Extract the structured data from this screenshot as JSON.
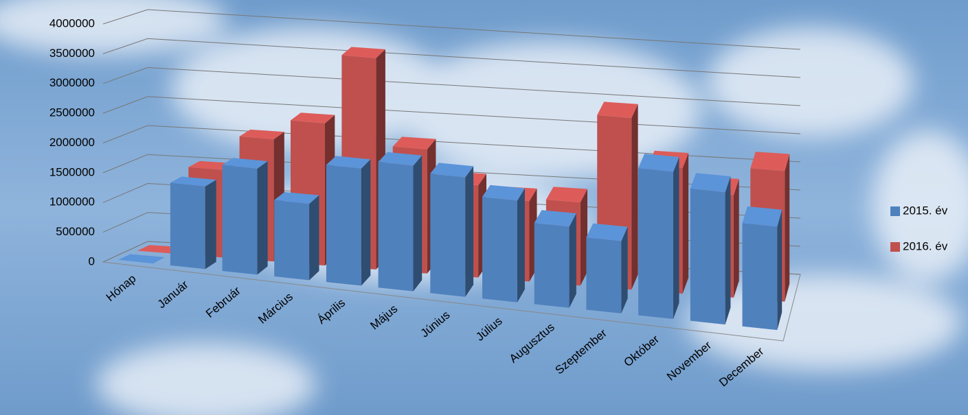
{
  "chart_data": {
    "type": "bar",
    "categories": [
      "Hónap",
      "Január",
      "Február",
      "Március",
      "Április",
      "Május",
      "Június",
      "Július",
      "Augusztus",
      "Szeptember",
      "Október",
      "November",
      "December"
    ],
    "series": [
      {
        "name": "2015. év",
        "color": "#4f81bd",
        "values": [
          0,
          1400000,
          1800000,
          1300000,
          2000000,
          2150000,
          2050000,
          1750000,
          1400000,
          1250000,
          2550000,
          2300000,
          1800000
        ]
      },
      {
        "name": "2016. év",
        "color": "#c0504d",
        "values": [
          0,
          1500000,
          2100000,
          2450000,
          3650000,
          2150000,
          1600000,
          1400000,
          1450000,
          3000000,
          2200000,
          1800000,
          2300000
        ]
      }
    ],
    "ylim": [
      0,
      4000000
    ],
    "yticks": [
      0,
      500000,
      1000000,
      1500000,
      2000000,
      2500000,
      3000000,
      3500000,
      4000000
    ],
    "grid": true,
    "legend": "right"
  }
}
